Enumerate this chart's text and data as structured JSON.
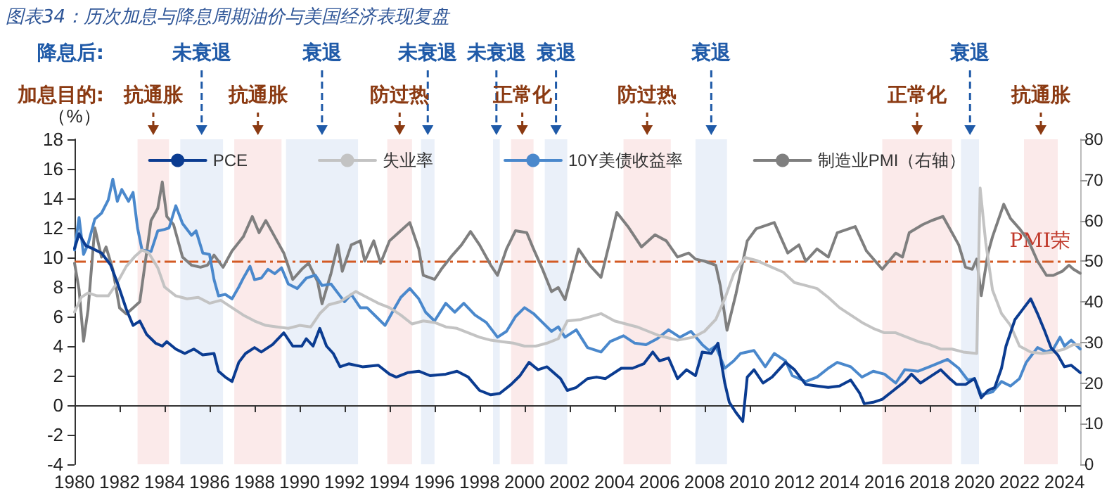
{
  "chart_data": {
    "type": "line",
    "title": "图表34：历次加息与降息周期油价与美国经济表现复盘",
    "ylabel": "（%）",
    "annotations": [
      "降息后:",
      "加息目的:"
    ],
    "xlim": [
      1980,
      2024.7
    ],
    "xticks": [
      1980,
      1982,
      1984,
      1986,
      1988,
      1990,
      1992,
      1994,
      1996,
      1998,
      2000,
      2002,
      2004,
      2006,
      2008,
      2010,
      2012,
      2014,
      2016,
      2018,
      2020,
      2022,
      2024
    ],
    "ylim": [
      -4,
      18
    ],
    "yticks": [
      -4,
      -2,
      0,
      2,
      4,
      6,
      8,
      10,
      12,
      14,
      16,
      18
    ],
    "y2lim": [
      0,
      80
    ],
    "y2ticks": [
      0,
      10,
      20,
      30,
      40,
      50,
      60,
      70,
      80
    ],
    "grid": false,
    "legend": "top",
    "marker": "none",
    "line_style": "solid",
    "series": [
      {
        "name": "PCE",
        "color": "#0b3c91",
        "x": [
          1980.0,
          1980.2,
          1980.5,
          1980.8,
          1981.2,
          1981.6,
          1981.9,
          1982.3,
          1982.6,
          1982.9,
          1983.2,
          1983.6,
          1983.9,
          1984.1,
          1984.5,
          1984.9,
          1985.3,
          1985.7,
          1986.2,
          1986.4,
          1986.7,
          1987.0,
          1987.3,
          1987.6,
          1988.0,
          1988.3,
          1988.8,
          1989.3,
          1989.7,
          1990.1,
          1990.3,
          1990.6,
          1990.9,
          1991.2,
          1991.5,
          1991.8,
          1992.2,
          1992.8,
          1993.5,
          1994.0,
          1994.3,
          1994.8,
          1995.3,
          1995.8,
          1996.5,
          1997.0,
          1997.5,
          1998.0,
          1998.5,
          1998.9,
          1999.4,
          1999.8,
          2000.2,
          2000.6,
          2001.0,
          2001.6,
          2001.9,
          2002.3,
          2002.8,
          2003.2,
          2003.6,
          2004.3,
          2004.8,
          2005.3,
          2005.7,
          2006.0,
          2006.4,
          2006.8,
          2007.2,
          2007.6,
          2007.9,
          2008.3,
          2008.6,
          2008.9,
          2009.1,
          2009.4,
          2009.7,
          2009.9,
          2010.2,
          2010.6,
          2011.0,
          2011.6,
          2012.0,
          2012.5,
          2013.0,
          2013.5,
          2014.0,
          2014.5,
          2014.9,
          2015.1,
          2015.5,
          2015.9,
          2016.4,
          2016.9,
          2017.2,
          2017.6,
          2018.0,
          2018.5,
          2018.9,
          2019.2,
          2019.6,
          2020.0,
          2020.3,
          2020.6,
          2020.9,
          2021.2,
          2021.4,
          2021.8,
          2022.1,
          2022.5,
          2022.8,
          2023.1,
          2023.4,
          2023.7,
          2024.0,
          2024.3,
          2024.7
        ],
        "values": [
          10.6,
          11.6,
          10.8,
          10.6,
          10.3,
          9.5,
          8.3,
          6.5,
          5.4,
          5.7,
          4.8,
          4.2,
          4.0,
          4.3,
          3.8,
          3.5,
          3.8,
          3.4,
          3.5,
          2.3,
          1.9,
          1.6,
          2.9,
          3.5,
          3.9,
          3.6,
          4.1,
          4.9,
          4.0,
          4.0,
          4.5,
          4.0,
          5.2,
          4.0,
          3.5,
          2.6,
          2.8,
          2.6,
          2.7,
          2.1,
          1.9,
          2.2,
          2.3,
          2.0,
          2.1,
          2.3,
          1.9,
          1.0,
          0.7,
          0.8,
          1.4,
          2.0,
          2.9,
          2.4,
          2.6,
          1.8,
          1.0,
          1.2,
          1.8,
          1.9,
          1.8,
          2.5,
          2.5,
          2.8,
          3.6,
          3.0,
          3.2,
          1.8,
          2.4,
          2.0,
          3.6,
          3.5,
          4.2,
          1.5,
          0.2,
          -0.5,
          -1.1,
          1.9,
          2.4,
          1.5,
          1.9,
          2.9,
          2.4,
          1.4,
          1.3,
          1.2,
          1.3,
          1.7,
          0.8,
          0.1,
          0.2,
          0.4,
          1.0,
          1.6,
          2.1,
          1.5,
          1.9,
          2.4,
          1.8,
          1.4,
          1.4,
          1.8,
          0.5,
          1.0,
          1.2,
          2.5,
          4.0,
          5.8,
          6.4,
          7.2,
          6.2,
          5.1,
          3.9,
          3.4,
          2.6,
          2.7,
          2.2
        ]
      },
      {
        "name": "失业率",
        "color": "#c3c3c3",
        "x": [
          1980.0,
          1980.3,
          1980.6,
          1981.0,
          1981.5,
          1981.9,
          1982.3,
          1982.7,
          1983.0,
          1983.3,
          1983.7,
          1984.0,
          1984.5,
          1985.0,
          1985.5,
          1986.0,
          1986.5,
          1987.0,
          1987.5,
          1988.0,
          1988.5,
          1989.0,
          1989.5,
          1990.0,
          1990.5,
          1990.9,
          1991.3,
          1991.8,
          1992.5,
          1993.0,
          1993.5,
          1994.0,
          1994.5,
          1995.0,
          1995.5,
          1996.0,
          1996.5,
          1997.0,
          1997.5,
          1998.0,
          1998.5,
          1999.0,
          1999.5,
          2000.0,
          2000.5,
          2001.0,
          2001.5,
          2001.9,
          2002.5,
          2003.4,
          2004.0,
          2004.5,
          2005.0,
          2005.5,
          2006.0,
          2006.8,
          2007.5,
          2008.0,
          2008.5,
          2008.9,
          2009.3,
          2009.8,
          2010.3,
          2010.9,
          2011.5,
          2012.0,
          2012.5,
          2013.0,
          2013.5,
          2014.0,
          2014.5,
          2015.0,
          2015.5,
          2016.0,
          2016.5,
          2017.0,
          2017.5,
          2018.0,
          2018.5,
          2019.0,
          2019.5,
          2020.1,
          2020.25,
          2020.5,
          2020.8,
          2021.2,
          2021.6,
          2022.0,
          2022.5,
          2023.0,
          2023.5,
          2024.0,
          2024.4,
          2024.7
        ],
        "values": [
          6.3,
          7.3,
          7.6,
          7.4,
          7.4,
          8.3,
          9.4,
          10.1,
          10.5,
          10.3,
          9.3,
          8.0,
          7.4,
          7.2,
          7.3,
          6.9,
          7.1,
          6.6,
          6.1,
          5.7,
          5.4,
          5.3,
          5.2,
          5.4,
          5.3,
          6.2,
          6.8,
          7.0,
          7.7,
          7.3,
          6.9,
          6.6,
          6.1,
          5.5,
          5.7,
          5.6,
          5.3,
          5.2,
          4.9,
          4.6,
          4.4,
          4.3,
          4.2,
          4.0,
          4.0,
          4.2,
          4.5,
          5.7,
          5.8,
          6.2,
          5.7,
          5.5,
          5.3,
          5.0,
          4.7,
          4.4,
          4.6,
          5.0,
          5.8,
          7.2,
          8.9,
          10.0,
          9.8,
          9.4,
          9.0,
          8.3,
          8.1,
          7.9,
          7.3,
          6.6,
          6.1,
          5.6,
          5.2,
          4.9,
          4.9,
          4.6,
          4.3,
          4.1,
          3.8,
          3.8,
          3.6,
          3.5,
          14.7,
          11.0,
          7.8,
          6.2,
          5.4,
          4.0,
          3.6,
          3.5,
          3.6,
          3.8,
          4.1,
          4.1
        ]
      },
      {
        "name": "10Y美债收益率",
        "color": "#4a88cc",
        "x": [
          1980.0,
          1980.2,
          1980.4,
          1980.6,
          1980.9,
          1981.2,
          1981.5,
          1981.7,
          1981.9,
          1982.1,
          1982.4,
          1982.6,
          1982.8,
          1983.0,
          1983.4,
          1983.7,
          1984.0,
          1984.2,
          1984.5,
          1984.8,
          1985.2,
          1985.4,
          1985.7,
          1986.0,
          1986.2,
          1986.4,
          1986.7,
          1987.0,
          1987.3,
          1987.5,
          1987.8,
          1988.0,
          1988.3,
          1988.6,
          1988.9,
          1989.2,
          1989.5,
          1989.9,
          1990.3,
          1990.7,
          1991.0,
          1991.4,
          1991.8,
          1992.0,
          1992.3,
          1992.7,
          1993.0,
          1993.4,
          1993.8,
          1994.2,
          1994.5,
          1994.9,
          1995.3,
          1995.6,
          1996.0,
          1996.5,
          1996.9,
          1997.3,
          1997.8,
          1998.3,
          1998.8,
          1999.2,
          1999.6,
          2000.0,
          2000.4,
          2000.8,
          2001.2,
          2001.5,
          2001.8,
          2002.3,
          2002.8,
          2003.4,
          2003.8,
          2004.4,
          2004.9,
          2005.4,
          2005.9,
          2006.4,
          2006.9,
          2007.4,
          2007.9,
          2008.2,
          2008.5,
          2008.9,
          2009.3,
          2009.6,
          2010.2,
          2010.7,
          2011.1,
          2011.6,
          2011.9,
          2012.5,
          2013.0,
          2013.5,
          2013.9,
          2014.5,
          2015.0,
          2015.5,
          2016.0,
          2016.5,
          2016.9,
          2017.5,
          2018.0,
          2018.8,
          2019.3,
          2019.7,
          2020.0,
          2020.3,
          2020.8,
          2021.2,
          2021.6,
          2022.0,
          2022.3,
          2022.8,
          2023.2,
          2023.5,
          2023.8,
          2024.0,
          2024.3,
          2024.7
        ],
        "values": [
          10.5,
          12.7,
          10.2,
          10.9,
          12.6,
          13.0,
          13.9,
          15.3,
          13.8,
          14.6,
          13.8,
          14.4,
          12.0,
          10.5,
          10.4,
          11.8,
          11.9,
          12.0,
          13.5,
          12.3,
          11.5,
          11.8,
          10.3,
          10.2,
          8.5,
          7.4,
          7.5,
          7.2,
          8.0,
          8.6,
          9.4,
          8.5,
          8.6,
          9.2,
          8.9,
          9.3,
          8.2,
          7.9,
          8.6,
          8.8,
          8.1,
          8.2,
          7.4,
          7.0,
          7.5,
          6.6,
          6.6,
          6.0,
          5.4,
          6.5,
          7.3,
          7.9,
          7.2,
          6.3,
          5.7,
          6.9,
          6.3,
          6.9,
          6.1,
          5.6,
          4.6,
          5.0,
          6.0,
          6.6,
          6.2,
          5.6,
          5.0,
          5.3,
          4.6,
          5.1,
          3.9,
          3.6,
          4.3,
          4.7,
          4.2,
          4.1,
          4.5,
          5.1,
          4.6,
          5.0,
          4.1,
          3.7,
          4.0,
          2.5,
          3.0,
          3.5,
          3.7,
          2.6,
          3.5,
          3.0,
          2.0,
          1.6,
          1.9,
          2.5,
          2.9,
          2.6,
          1.9,
          2.3,
          2.1,
          1.5,
          2.4,
          2.3,
          2.6,
          3.1,
          2.5,
          1.7,
          1.8,
          0.7,
          0.9,
          1.6,
          1.3,
          1.8,
          2.9,
          3.9,
          3.6,
          3.8,
          4.6,
          4.0,
          4.4,
          3.8
        ]
      },
      {
        "name": "制造业PMI（右轴）",
        "color": "#7f7f7f",
        "axis": "y2",
        "x": [
          1980.0,
          1980.2,
          1980.4,
          1980.6,
          1980.9,
          1981.2,
          1981.4,
          1981.7,
          1982.0,
          1982.3,
          1982.6,
          1982.9,
          1983.2,
          1983.4,
          1983.7,
          1983.9,
          1984.1,
          1984.4,
          1984.8,
          1985.2,
          1985.6,
          1985.9,
          1986.2,
          1986.6,
          1987.0,
          1987.5,
          1987.9,
          1988.2,
          1988.5,
          1988.9,
          1989.3,
          1989.7,
          1990.1,
          1990.4,
          1990.8,
          1991.0,
          1991.4,
          1991.7,
          1991.9,
          1992.3,
          1992.7,
          1992.9,
          1993.3,
          1993.6,
          1994.0,
          1994.4,
          1994.9,
          1995.3,
          1995.5,
          1996.0,
          1996.3,
          1996.8,
          1997.2,
          1997.6,
          1998.0,
          1998.5,
          1998.8,
          1999.2,
          1999.6,
          2000.1,
          2000.4,
          2000.8,
          2001.2,
          2001.5,
          2001.8,
          2002.4,
          2002.9,
          2003.4,
          2003.8,
          2004.1,
          2004.6,
          2005.2,
          2005.8,
          2006.3,
          2006.8,
          2007.3,
          2007.6,
          2008.0,
          2008.5,
          2008.7,
          2009.0,
          2009.4,
          2009.9,
          2010.3,
          2011.1,
          2011.7,
          2012.2,
          2012.5,
          2013.0,
          2013.5,
          2013.9,
          2014.7,
          2015.2,
          2015.9,
          2016.5,
          2016.8,
          2017.1,
          2017.7,
          2018.1,
          2018.6,
          2018.9,
          2019.3,
          2019.6,
          2019.9,
          2020.1,
          2020.3,
          2020.6,
          2020.8,
          2021.3,
          2021.6,
          2022.0,
          2022.4,
          2022.8,
          2023.2,
          2023.5,
          2023.9,
          2024.2,
          2024.4,
          2024.7
        ],
        "values": [
          49.5,
          43,
          30.3,
          38,
          58.2,
          51,
          53.5,
          48,
          38.5,
          37,
          38.5,
          40,
          52,
          60,
          63,
          69.5,
          61,
          59,
          51,
          49,
          48.5,
          49,
          51.5,
          48.5,
          52.5,
          56,
          61,
          57,
          60,
          56,
          52,
          45.5,
          48,
          49.5,
          45,
          39.5,
          47,
          54,
          47.5,
          54,
          55,
          50,
          55,
          49.5,
          55,
          57,
          59.5,
          53,
          46.5,
          45.5,
          48,
          51.5,
          54,
          57.3,
          54,
          49,
          46.5,
          53,
          57.5,
          57,
          53,
          48,
          42.5,
          43.5,
          40.5,
          53,
          49,
          46,
          55,
          62,
          58.5,
          53.5,
          56.5,
          55,
          51,
          52,
          50.5,
          50,
          49,
          44,
          33,
          42,
          55,
          58,
          59.5,
          52,
          54,
          50,
          53,
          51,
          57,
          58.5,
          52.5,
          48,
          52,
          51,
          57,
          59,
          60,
          61,
          58,
          54,
          48.5,
          48,
          50.5,
          41.5,
          52,
          56,
          64,
          60.5,
          58,
          55,
          50,
          46.5,
          46.5,
          47.5,
          49,
          48,
          47
        ]
      }
    ],
    "ref_lines": [
      {
        "axis": "y2",
        "value": 50,
        "label": "PMI荣",
        "color": "#d35a24",
        "line_style": "dashed"
      }
    ],
    "bands": [
      {
        "axis": "x",
        "from": 1984.7,
        "to": 1986.6,
        "label": "未衰退",
        "color": "#eaf0f9"
      },
      {
        "axis": "x",
        "from": 1989.4,
        "to": 1992.6,
        "label": "衰退",
        "color": "#eaf0f9"
      },
      {
        "axis": "x",
        "from": 1995.4,
        "to": 1996.0,
        "label": "未衰退",
        "color": "#eaf0f9"
      },
      {
        "axis": "x",
        "from": 1998.6,
        "to": 1998.9,
        "label": "未衰退",
        "color": "#eaf0f9"
      },
      {
        "axis": "x",
        "from": 2000.9,
        "to": 2001.9,
        "label": "衰退",
        "color": "#eaf0f9"
      },
      {
        "axis": "x",
        "from": 2007.6,
        "to": 2009.0,
        "label": "衰退",
        "color": "#eaf0f9"
      },
      {
        "axis": "x",
        "from": 2019.4,
        "to": 2020.2,
        "label": "衰退",
        "color": "#eaf0f9"
      },
      {
        "axis": "x",
        "from": 1982.8,
        "to": 1984.2,
        "label": "抗通胀",
        "color": "#fbeaea"
      },
      {
        "axis": "x",
        "from": 1987.1,
        "to": 1989.2,
        "label": "抗通胀",
        "color": "#fbeaea"
      },
      {
        "axis": "x",
        "from": 1993.9,
        "to": 1995.0,
        "label": "防过热",
        "color": "#fbeaea"
      },
      {
        "axis": "x",
        "from": 1999.4,
        "to": 2000.4,
        "label": "正常化",
        "color": "#fbeaea"
      },
      {
        "axis": "x",
        "from": 2004.4,
        "to": 2006.5,
        "label": "防过热",
        "color": "#fbeaea"
      },
      {
        "axis": "x",
        "from": 2015.9,
        "to": 2019.0,
        "label": "正常化",
        "color": "#fbeaea"
      },
      {
        "axis": "x",
        "from": 2022.2,
        "to": 2023.7,
        "label": "抗通胀",
        "color": "#fbeaea"
      }
    ]
  }
}
